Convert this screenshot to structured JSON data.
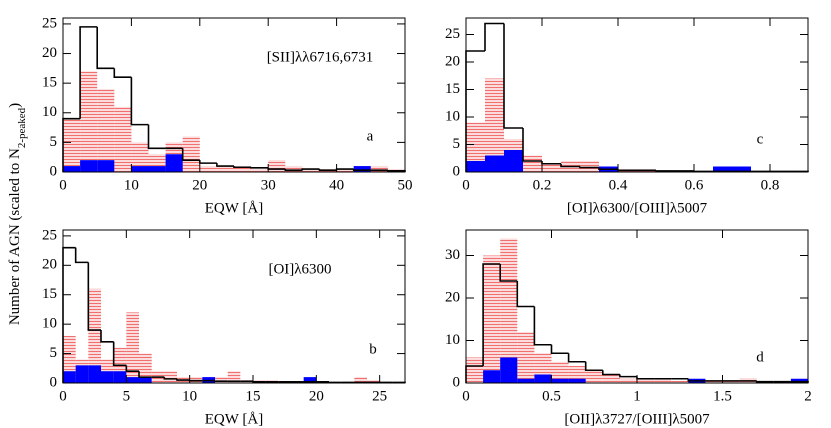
{
  "ylabel": [
    "Number of AGN (scaled to N",
    "2-peaked",
    ")"
  ],
  "chart_data": [
    {
      "type": "histogram",
      "xlabel": "EQW [Å]",
      "annotation": "[SII]λλ6716,6731",
      "panel_letter": "a",
      "bins": [
        0,
        2.5,
        5,
        7.5,
        10,
        12.5,
        15,
        17.5,
        20,
        22.5,
        25,
        27.5,
        30,
        32.5,
        35,
        37.5,
        40,
        42.5,
        45,
        47.5,
        50
      ],
      "xlim": [
        0,
        50
      ],
      "xticks": [
        0,
        10,
        20,
        30,
        40,
        50
      ],
      "ylim": [
        0,
        26
      ],
      "yticks": [
        0,
        5,
        10,
        15,
        20,
        25
      ],
      "series": [
        {
          "style": "hatched",
          "color": "#f07070",
          "values": [
            9,
            17,
            14,
            11,
            5,
            3,
            5,
            6,
            1,
            1,
            1,
            0.5,
            2,
            1,
            0.5,
            0.5,
            0.5,
            0.5,
            1,
            0.5
          ]
        },
        {
          "style": "filled",
          "color": "#0000ff",
          "values": [
            1,
            2,
            2,
            0,
            1,
            1,
            3,
            0,
            0,
            0,
            0,
            0,
            0,
            0,
            0,
            0,
            0,
            1,
            0,
            0
          ]
        },
        {
          "style": "step",
          "color": "#000000",
          "values": [
            9,
            24.5,
            17.5,
            16,
            8,
            4,
            4,
            2,
            1.5,
            1,
            0.8,
            0.7,
            0.5,
            0.3,
            0.5,
            0.3,
            0.5,
            0.3,
            0.3,
            0.2
          ]
        }
      ]
    },
    {
      "type": "histogram",
      "xlabel": "[OI]λ6300/[OIII]λ5007",
      "panel_letter": "c",
      "bins": [
        0,
        0.05,
        0.1,
        0.15,
        0.2,
        0.25,
        0.3,
        0.35,
        0.4,
        0.45,
        0.5,
        0.55,
        0.6,
        0.65,
        0.7,
        0.75,
        0.8,
        0.85,
        0.9
      ],
      "xlim": [
        0,
        0.9
      ],
      "xticks": [
        0,
        0.2,
        0.4,
        0.6,
        0.8
      ],
      "ylim": [
        0,
        28
      ],
      "yticks": [
        0,
        5,
        10,
        15,
        20,
        25
      ],
      "series": [
        {
          "style": "hatched",
          "color": "#f07070",
          "values": [
            9,
            17,
            6,
            3,
            1.5,
            2,
            2,
            0.5,
            0.5,
            0.5,
            0.3,
            0.2,
            0,
            0,
            0,
            0,
            0,
            0
          ]
        },
        {
          "style": "filled",
          "color": "#0000ff",
          "values": [
            2,
            3,
            4,
            0,
            0,
            0,
            0,
            1,
            0,
            0,
            0,
            0,
            0,
            1,
            1,
            0,
            0,
            0
          ]
        },
        {
          "style": "step",
          "color": "#000000",
          "values": [
            22,
            27,
            8,
            2,
            1.5,
            1,
            0.8,
            0.5,
            0.3,
            0.3,
            0.2,
            0.2,
            0.1,
            0.1,
            0.1,
            0.1,
            0.1,
            0.1
          ]
        }
      ]
    },
    {
      "type": "histogram",
      "xlabel": "EQW [Å]",
      "annotation": "[OI]λ6300",
      "panel_letter": "b",
      "bins": [
        0,
        1,
        2,
        3,
        4,
        5,
        6,
        7,
        8,
        9,
        10,
        11,
        12,
        13,
        14,
        15,
        16,
        17,
        18,
        19,
        20,
        21,
        22,
        23,
        24,
        25,
        26,
        27
      ],
      "xlim": [
        0,
        27
      ],
      "xticks": [
        0,
        5,
        10,
        15,
        20,
        25
      ],
      "ylim": [
        0,
        26
      ],
      "yticks": [
        0,
        5,
        10,
        15,
        20,
        25
      ],
      "series": [
        {
          "style": "hatched",
          "color": "#f07070",
          "values": [
            8,
            4,
            16,
            4,
            6,
            12,
            5,
            2,
            2,
            1,
            1,
            0.5,
            1,
            2,
            0.5,
            0.5,
            0.5,
            0,
            0,
            0,
            0,
            0,
            0,
            1,
            0.5,
            0,
            0
          ]
        },
        {
          "style": "filled",
          "color": "#0000ff",
          "values": [
            2,
            3,
            3,
            2,
            2,
            1,
            1,
            0,
            0,
            0,
            0,
            1,
            0,
            0,
            0,
            0,
            0,
            0,
            0,
            1,
            0,
            0,
            0,
            0,
            0,
            0,
            0
          ]
        },
        {
          "style": "step",
          "color": "#000000",
          "values": [
            23,
            20.5,
            9,
            7,
            3,
            2,
            1,
            1,
            0.7,
            0.5,
            0.4,
            0.4,
            0.3,
            0.3,
            0.3,
            0.2,
            0.2,
            0.2,
            0.2,
            0.2,
            0.2,
            0.1,
            0.1,
            0.1,
            0.1,
            0.1,
            0.1
          ]
        }
      ]
    },
    {
      "type": "histogram",
      "xlabel": "[OII]λ3727/[OIII]λ5007",
      "panel_letter": "d",
      "bins": [
        0,
        0.1,
        0.2,
        0.3,
        0.4,
        0.5,
        0.6,
        0.7,
        0.8,
        0.9,
        1,
        1.1,
        1.2,
        1.3,
        1.4,
        1.5,
        1.6,
        1.7,
        1.8,
        1.9,
        2
      ],
      "xlim": [
        0,
        2
      ],
      "xticks": [
        0,
        0.5,
        1,
        1.5,
        2
      ],
      "ylim": [
        0,
        36
      ],
      "yticks": [
        0,
        10,
        20,
        30
      ],
      "series": [
        {
          "style": "hatched",
          "color": "#f07070",
          "values": [
            6,
            30,
            34,
            12,
            7,
            5,
            4,
            3,
            2,
            1,
            1,
            1,
            0.5,
            0.5,
            0.5,
            0.5,
            1,
            0.3,
            0.3,
            0.3
          ]
        },
        {
          "style": "filled",
          "color": "#0000ff",
          "values": [
            0,
            3,
            6,
            1,
            2,
            1,
            1,
            0,
            0,
            0,
            0,
            0,
            0,
            1,
            0,
            0,
            0,
            0,
            0,
            1
          ]
        },
        {
          "style": "step",
          "color": "#000000",
          "values": [
            4,
            28,
            24,
            18,
            9,
            7,
            5,
            3,
            2,
            1.5,
            1,
            1,
            1,
            0.5,
            0.5,
            0.5,
            0.5,
            0.3,
            0.3,
            0.3
          ]
        }
      ]
    }
  ]
}
